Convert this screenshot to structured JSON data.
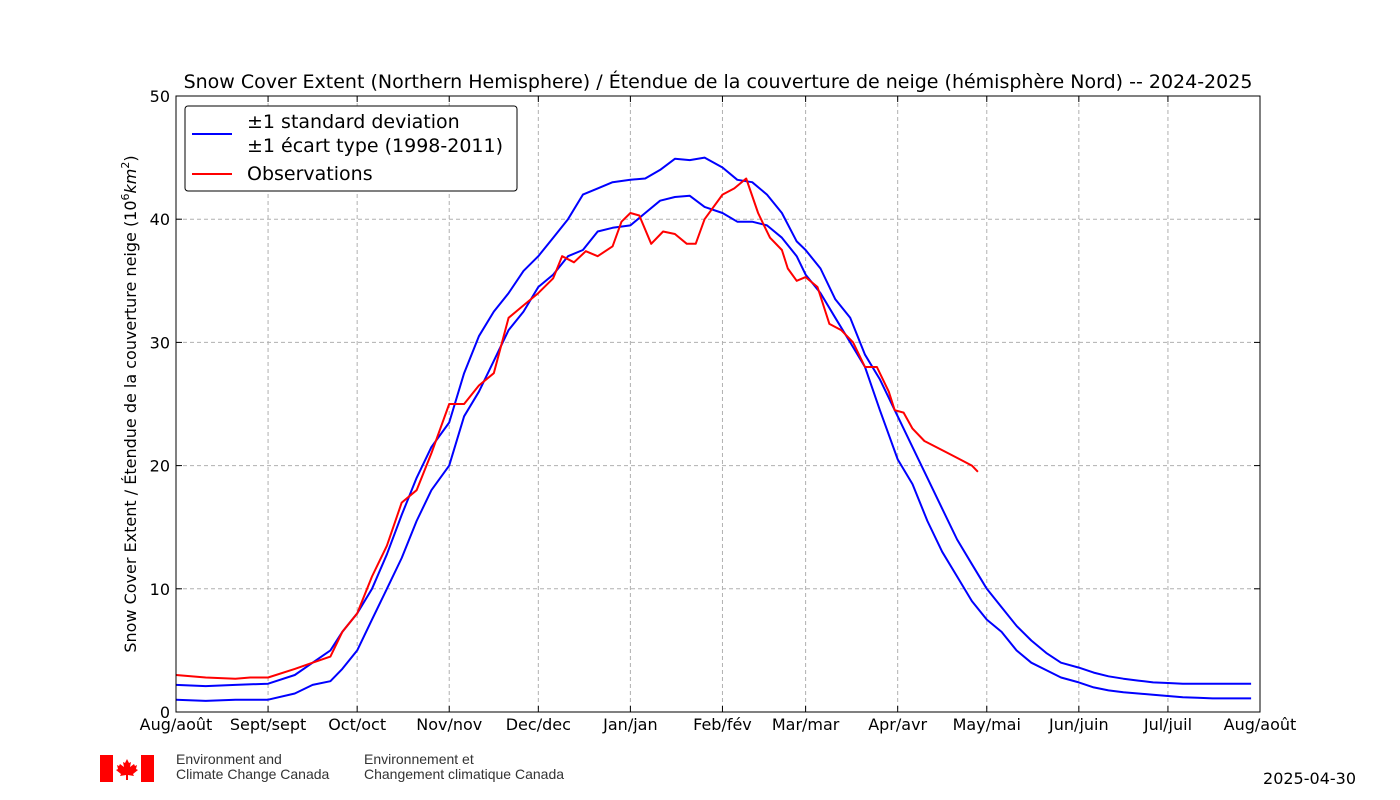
{
  "chart_data": {
    "type": "line",
    "title": "Snow Cover Extent (Northern Hemisphere) / Étendue de la couverture de neige (hémisphère Nord) -- 2024-2025",
    "ylabel": "Snow Cover Extent / Étendue de la couverture neige (10⁶km²)",
    "xlabel": "",
    "ylim": [
      0,
      50
    ],
    "yticks": [
      0,
      10,
      20,
      30,
      40,
      50
    ],
    "xlim": [
      0,
      365
    ],
    "month_positions": [
      0,
      31,
      61,
      92,
      122,
      153,
      184,
      212,
      243,
      273,
      304,
      334,
      365
    ],
    "month_labels": [
      "Aug/août",
      "Sept/sept",
      "Oct/oct",
      "Nov/nov",
      "Dec/dec",
      "Jan/jan",
      "Feb/fév",
      "Mar/mar",
      "Apr/avr",
      "May/mai",
      "Jun/juin",
      "Jul/juil",
      "Aug/août"
    ],
    "grid": true,
    "legend": {
      "placement": "top-left",
      "std_label_line1": "±1 standard deviation",
      "std_label_line2": "±1 écart type (1998-2011)",
      "obs_label": "Observations"
    },
    "series": [
      {
        "name": "±1 standard deviation / ±1 écart type (1998-2011)",
        "color": "#0000ff",
        "x": [
          0,
          10,
          20,
          31,
          40,
          46,
          52,
          56,
          61,
          66,
          71,
          76,
          81,
          86,
          92,
          97,
          102,
          107,
          112,
          117,
          122,
          127,
          132,
          137,
          142,
          147,
          153,
          158,
          163,
          168,
          173,
          178,
          184,
          189,
          194,
          199,
          204,
          209,
          212,
          217,
          222,
          227,
          232,
          237,
          243,
          248,
          253,
          258,
          263,
          268,
          273,
          278,
          283,
          288,
          293,
          298,
          304,
          309,
          314,
          319,
          324,
          329,
          334,
          339,
          344,
          349,
          355,
          362
        ],
        "values": [
          2.2,
          2.1,
          2.2,
          2.3,
          3.0,
          4.0,
          5.0,
          6.5,
          8.0,
          10.0,
          12.8,
          16.0,
          19.0,
          21.5,
          23.5,
          27.5,
          30.5,
          32.5,
          34.0,
          35.8,
          37.0,
          38.5,
          40.0,
          42.0,
          42.5,
          43.0,
          43.2,
          43.3,
          44.0,
          44.9,
          44.8,
          45.0,
          44.2,
          43.2,
          43.0,
          42.0,
          40.5,
          38.2,
          37.5,
          36.0,
          33.5,
          32.0,
          29.0,
          27.0,
          24.0,
          21.5,
          19.0,
          16.5,
          14.0,
          12.0,
          10.0,
          8.5,
          7.0,
          5.8,
          4.8,
          4.0,
          3.6,
          3.2,
          2.9,
          2.7,
          2.55,
          2.4,
          2.35,
          2.3,
          2.3,
          2.3,
          2.3,
          2.3
        ]
      },
      {
        "name": "±1 standard deviation / ±1 écart type (1998-2011) (lower)",
        "color": "#0000ff",
        "x": [
          0,
          10,
          20,
          31,
          40,
          46,
          52,
          56,
          61,
          66,
          71,
          76,
          81,
          86,
          92,
          97,
          102,
          107,
          112,
          117,
          122,
          127,
          132,
          137,
          142,
          147,
          153,
          158,
          163,
          168,
          173,
          178,
          184,
          189,
          194,
          199,
          204,
          209,
          212,
          217,
          222,
          227,
          232,
          237,
          243,
          248,
          253,
          258,
          263,
          268,
          273,
          278,
          283,
          288,
          293,
          298,
          304,
          309,
          314,
          319,
          324,
          329,
          334,
          339,
          344,
          349,
          355,
          362
        ],
        "values": [
          1.0,
          0.9,
          1.0,
          1.0,
          1.5,
          2.2,
          2.5,
          3.5,
          5.0,
          7.5,
          10.0,
          12.5,
          15.5,
          18.0,
          20.0,
          24.0,
          26.0,
          28.5,
          31.0,
          32.5,
          34.5,
          35.5,
          37.0,
          37.5,
          39.0,
          39.3,
          39.5,
          40.5,
          41.5,
          41.8,
          41.9,
          41.0,
          40.5,
          39.8,
          39.8,
          39.5,
          38.5,
          37.0,
          35.5,
          34.0,
          32.0,
          30.0,
          28.0,
          24.5,
          20.5,
          18.5,
          15.5,
          13.0,
          11.0,
          9.0,
          7.5,
          6.5,
          5.0,
          4.0,
          3.4,
          2.8,
          2.4,
          2.0,
          1.75,
          1.6,
          1.5,
          1.4,
          1.3,
          1.2,
          1.15,
          1.1,
          1.1,
          1.1
        ]
      },
      {
        "name": "Observations",
        "color": "#ff0000",
        "x": [
          0,
          10,
          20,
          25,
          31,
          40,
          46,
          52,
          56,
          61,
          66,
          71,
          76,
          81,
          86,
          92,
          97,
          102,
          107,
          112,
          117,
          122,
          127,
          130,
          134,
          138,
          142,
          147,
          150,
          153,
          156,
          160,
          164,
          168,
          172,
          175,
          178,
          184,
          188,
          192,
          196,
          198,
          200,
          204,
          206,
          209,
          212,
          216,
          220,
          224,
          228,
          232,
          236,
          240,
          242,
          245,
          248,
          252,
          256,
          260,
          264,
          268,
          270
        ],
        "values": [
          3.0,
          2.8,
          2.7,
          2.8,
          2.8,
          3.5,
          4.0,
          4.5,
          6.5,
          8.0,
          11.0,
          13.5,
          17.0,
          18.0,
          21.0,
          25.0,
          25.0,
          26.5,
          27.5,
          32.0,
          33.0,
          34.0,
          35.2,
          37.0,
          36.5,
          37.4,
          37.0,
          37.8,
          39.8,
          40.5,
          40.3,
          38.0,
          39.0,
          38.8,
          38.0,
          38.0,
          40.0,
          42.0,
          42.5,
          43.3,
          40.5,
          39.5,
          38.5,
          37.5,
          36.0,
          35.0,
          35.3,
          34.5,
          31.5,
          31.0,
          30.0,
          28.0,
          28.0,
          26.0,
          24.5,
          24.3,
          23.0,
          22.0,
          21.5,
          21.0,
          20.5,
          20.0,
          19.5
        ]
      }
    ]
  },
  "footer": {
    "dept_en_line1": "Environment and",
    "dept_en_line2": "Climate Change Canada",
    "dept_fr_line1": "Environnement et",
    "dept_fr_line2": "Changement climatique Canada",
    "date": "2025-04-30",
    "flag_color": "#ff0000"
  }
}
